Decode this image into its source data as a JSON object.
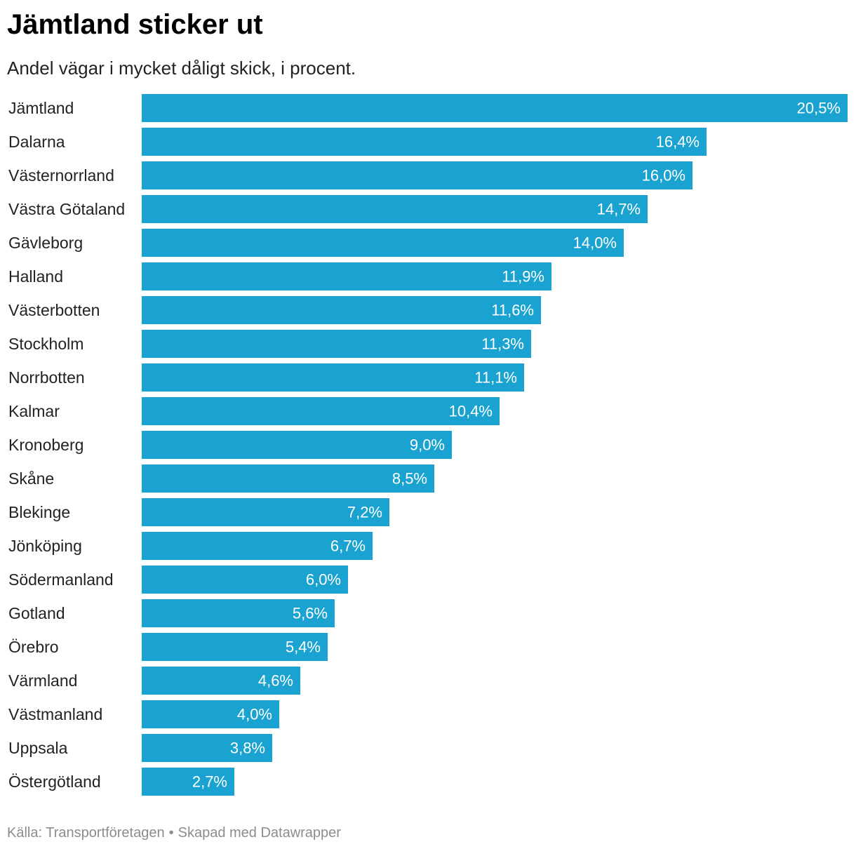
{
  "header": {
    "title": "Jämtland sticker ut",
    "subtitle": "Andel vägar i mycket dåligt skick, i procent."
  },
  "footer": {
    "source": "Källa: Transportföretagen",
    "separator": "•",
    "credit": "Skapad med Datawrapper"
  },
  "colors": {
    "bar": "#1aa2d0",
    "value_label": "#ffffff",
    "category_label": "#222222",
    "footer_text": "#8c8c8c"
  },
  "chart_data": {
    "type": "bar",
    "orientation": "horizontal",
    "title": "Jämtland sticker ut",
    "subtitle": "Andel vägar i mycket dåligt skick, i procent.",
    "xlim": [
      0,
      20.5
    ],
    "grid": false,
    "categories": [
      "Jämtland",
      "Dalarna",
      "Västernorrland",
      "Västra Götaland",
      "Gävleborg",
      "Halland",
      "Västerbotten",
      "Stockholm",
      "Norrbotten",
      "Kalmar",
      "Kronoberg",
      "Skåne",
      "Blekinge",
      "Jönköping",
      "Södermanland",
      "Gotland",
      "Örebro",
      "Värmland",
      "Västmanland",
      "Uppsala",
      "Östergötland"
    ],
    "values": [
      20.5,
      16.4,
      16.0,
      14.7,
      14.0,
      11.9,
      11.6,
      11.3,
      11.1,
      10.4,
      9.0,
      8.5,
      7.2,
      6.7,
      6.0,
      5.6,
      5.4,
      4.6,
      4.0,
      3.8,
      2.7
    ],
    "value_labels": [
      "20,5%",
      "16,4%",
      "16,0%",
      "14,7%",
      "14,0%",
      "11,9%",
      "11,6%",
      "11,3%",
      "11,1%",
      "10,4%",
      "9,0%",
      "8,5%",
      "7,2%",
      "6,7%",
      "6,0%",
      "5,6%",
      "5,4%",
      "4,6%",
      "4,0%",
      "3,8%",
      "2,7%"
    ]
  }
}
